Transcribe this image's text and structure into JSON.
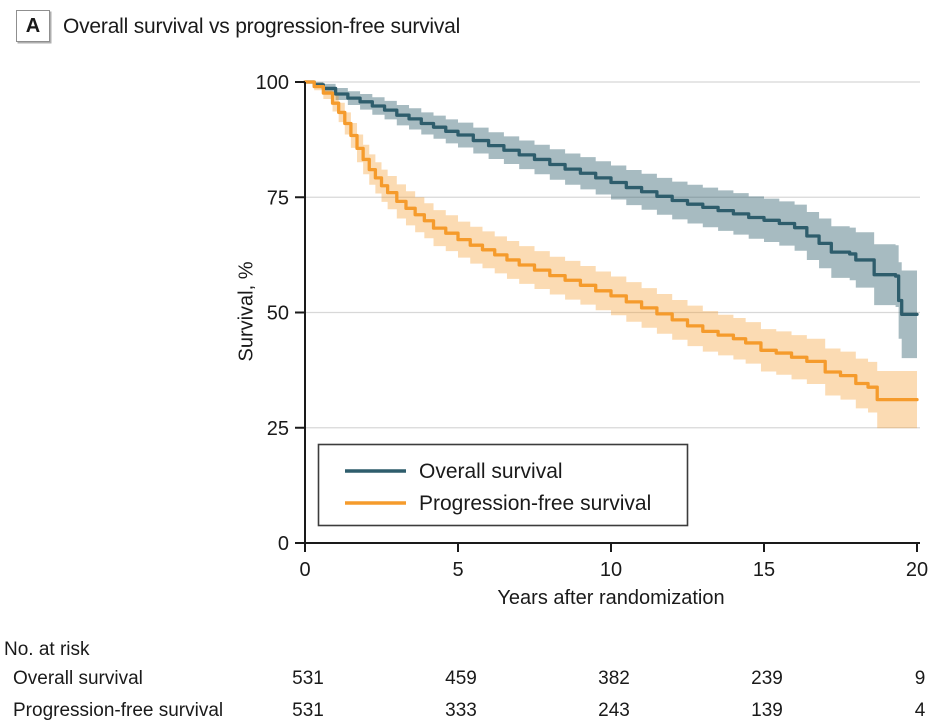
{
  "panel": {
    "label": "A",
    "title": "Overall survival vs progression-free survival"
  },
  "chart_data": {
    "type": "line",
    "subtype": "kaplan-meier-step-with-confidence-bands",
    "title": "Overall survival vs progression-free survival",
    "xlabel": "Years after randomization",
    "ylabel": "Survival, %",
    "xlim": [
      0,
      20
    ],
    "ylim": [
      0,
      100
    ],
    "xticks": [
      "0",
      "5",
      "10",
      "15",
      "20"
    ],
    "yticks": [
      "0",
      "25",
      "50",
      "75",
      "100"
    ],
    "grid": "horizontal",
    "legend": {
      "position": "inside-bottom-left",
      "entries": [
        "Overall survival",
        "Progression-free survival"
      ]
    },
    "colors": {
      "axis": "#1a1a1a",
      "grid": "#d8d8d8",
      "os_line": "#2E5D6C",
      "pfs_line": "#F59B2C"
    },
    "series": [
      {
        "name": "Overall survival",
        "color": "#2E5D6C",
        "band_color": "rgba(46,93,108,0.42)",
        "points_format": [
          "years",
          "survival_pct",
          "ci_low_pct",
          "ci_high_pct"
        ],
        "points": [
          [
            0,
            100,
            100,
            100
          ],
          [
            0.3,
            99.4,
            98.7,
            100
          ],
          [
            0.6,
            98.6,
            97.6,
            99.6
          ],
          [
            1.0,
            97.4,
            96.1,
            98.7
          ],
          [
            1.4,
            96.5,
            95.0,
            98.0
          ],
          [
            1.8,
            95.7,
            94.0,
            97.4
          ],
          [
            2.2,
            94.8,
            92.9,
            96.7
          ],
          [
            2.6,
            93.9,
            91.9,
            95.9
          ],
          [
            3.0,
            92.8,
            90.6,
            95.0
          ],
          [
            3.4,
            92.0,
            89.7,
            94.3
          ],
          [
            3.8,
            91.0,
            88.6,
            93.4
          ],
          [
            4.2,
            90.2,
            87.7,
            92.7
          ],
          [
            4.6,
            89.3,
            86.7,
            91.9
          ],
          [
            5.0,
            88.5,
            85.8,
            91.2
          ],
          [
            5.5,
            87.3,
            84.5,
            90.1
          ],
          [
            6.0,
            86.2,
            83.3,
            89.1
          ],
          [
            6.5,
            85.2,
            82.2,
            88.2
          ],
          [
            7.0,
            84.2,
            81.1,
            87.3
          ],
          [
            7.5,
            83.2,
            80.0,
            86.4
          ],
          [
            8.0,
            82.1,
            78.8,
            85.4
          ],
          [
            8.5,
            81.1,
            77.7,
            84.5
          ],
          [
            9.0,
            80.2,
            76.7,
            83.7
          ],
          [
            9.5,
            79.2,
            75.6,
            82.8
          ],
          [
            10.0,
            78.2,
            74.5,
            81.9
          ],
          [
            10.5,
            77.1,
            73.3,
            80.9
          ],
          [
            11.0,
            76.2,
            72.3,
            80.1
          ],
          [
            11.5,
            75.2,
            71.2,
            79.2
          ],
          [
            12.0,
            74.3,
            70.2,
            78.4
          ],
          [
            12.5,
            73.5,
            69.3,
            77.7
          ],
          [
            13.0,
            72.8,
            68.5,
            77.1
          ],
          [
            13.5,
            72.1,
            67.7,
            76.5
          ],
          [
            14.0,
            71.4,
            66.9,
            75.9
          ],
          [
            14.5,
            70.6,
            66.0,
            75.2
          ],
          [
            15.0,
            70.0,
            65.3,
            74.7
          ],
          [
            15.5,
            69.3,
            64.5,
            74.1
          ],
          [
            16.0,
            68.4,
            63.4,
            73.4
          ],
          [
            16.4,
            66.6,
            61.4,
            71.8
          ],
          [
            16.8,
            65.0,
            59.6,
            70.4
          ],
          [
            17.2,
            63.1,
            57.5,
            68.7
          ],
          [
            17.8,
            62.7,
            57.0,
            68.4
          ],
          [
            18.0,
            61.4,
            55.4,
            67.4
          ],
          [
            18.6,
            58.2,
            51.6,
            64.8
          ],
          [
            19.3,
            57.9,
            51.2,
            64.6
          ],
          [
            19.4,
            52.6,
            44.3,
            60.9
          ],
          [
            19.5,
            49.6,
            40.1,
            59.1
          ],
          [
            20.0,
            49.6,
            40.1,
            59.1
          ]
        ]
      },
      {
        "name": "Progression-free survival",
        "color": "#F59B2C",
        "band_color": "rgba(245,155,44,0.36)",
        "points_format": [
          "years",
          "survival_pct",
          "ci_low_pct",
          "ci_high_pct"
        ],
        "points": [
          [
            0,
            100,
            100,
            100
          ],
          [
            0.3,
            99.0,
            98.2,
            99.8
          ],
          [
            0.6,
            97.6,
            96.3,
            98.9
          ],
          [
            0.9,
            95.4,
            93.6,
            97.2
          ],
          [
            1.1,
            93.4,
            91.3,
            95.5
          ],
          [
            1.3,
            91.0,
            88.6,
            93.4
          ],
          [
            1.5,
            88.4,
            85.7,
            91.1
          ],
          [
            1.7,
            85.6,
            82.6,
            88.6
          ],
          [
            1.9,
            83.2,
            80.0,
            86.4
          ],
          [
            2.1,
            81.0,
            77.7,
            84.3
          ],
          [
            2.3,
            79.2,
            75.8,
            82.6
          ],
          [
            2.5,
            77.5,
            74.0,
            81.0
          ],
          [
            2.7,
            76.0,
            72.4,
            79.6
          ],
          [
            3.0,
            74.1,
            70.4,
            77.8
          ],
          [
            3.3,
            72.6,
            68.9,
            76.3
          ],
          [
            3.6,
            71.2,
            67.4,
            75.0
          ],
          [
            3.9,
            69.9,
            66.1,
            73.7
          ],
          [
            4.2,
            68.3,
            64.4,
            72.2
          ],
          [
            4.6,
            67.2,
            63.3,
            71.1
          ],
          [
            5.0,
            65.8,
            61.9,
            69.7
          ],
          [
            5.4,
            64.6,
            60.6,
            68.6
          ],
          [
            5.8,
            63.6,
            59.6,
            67.6
          ],
          [
            6.2,
            62.5,
            58.5,
            66.5
          ],
          [
            6.6,
            61.4,
            57.3,
            65.5
          ],
          [
            7.0,
            60.3,
            56.2,
            64.4
          ],
          [
            7.5,
            59.2,
            55.1,
            63.3
          ],
          [
            8.0,
            58.0,
            53.9,
            62.1
          ],
          [
            8.5,
            57.0,
            52.8,
            61.2
          ],
          [
            9.0,
            55.9,
            51.7,
            60.1
          ],
          [
            9.5,
            54.7,
            50.5,
            58.9
          ],
          [
            10.0,
            53.6,
            49.4,
            57.8
          ],
          [
            10.5,
            52.3,
            48.0,
            56.6
          ],
          [
            11.0,
            51.0,
            46.7,
            55.3
          ],
          [
            11.5,
            49.7,
            45.4,
            54.0
          ],
          [
            12.0,
            48.4,
            44.1,
            52.7
          ],
          [
            12.5,
            47.1,
            42.7,
            51.5
          ],
          [
            13.0,
            45.9,
            41.5,
            50.3
          ],
          [
            13.5,
            45.1,
            40.7,
            49.5
          ],
          [
            14.0,
            44.3,
            39.8,
            48.8
          ],
          [
            14.4,
            43.4,
            38.9,
            47.9
          ],
          [
            14.9,
            41.8,
            37.2,
            46.4
          ],
          [
            15.4,
            41.2,
            36.5,
            45.9
          ],
          [
            15.9,
            40.3,
            35.5,
            45.1
          ],
          [
            16.4,
            39.4,
            34.5,
            44.3
          ],
          [
            17.0,
            37.1,
            32.0,
            42.2
          ],
          [
            17.5,
            36.3,
            31.1,
            41.5
          ],
          [
            18.0,
            34.6,
            29.2,
            40.0
          ],
          [
            18.4,
            33.8,
            28.3,
            39.3
          ],
          [
            18.7,
            31.1,
            24.9,
            37.3
          ],
          [
            20.0,
            31.1,
            24.9,
            37.3
          ]
        ]
      }
    ]
  },
  "risk_table": {
    "heading": "No. at risk",
    "times": [
      0,
      5,
      10,
      15,
      20
    ],
    "rows": [
      {
        "label": "Overall survival",
        "values": [
          "531",
          "459",
          "382",
          "239",
          "9"
        ]
      },
      {
        "label": "Progression-free survival",
        "values": [
          "531",
          "333",
          "243",
          "139",
          "4"
        ]
      }
    ]
  }
}
